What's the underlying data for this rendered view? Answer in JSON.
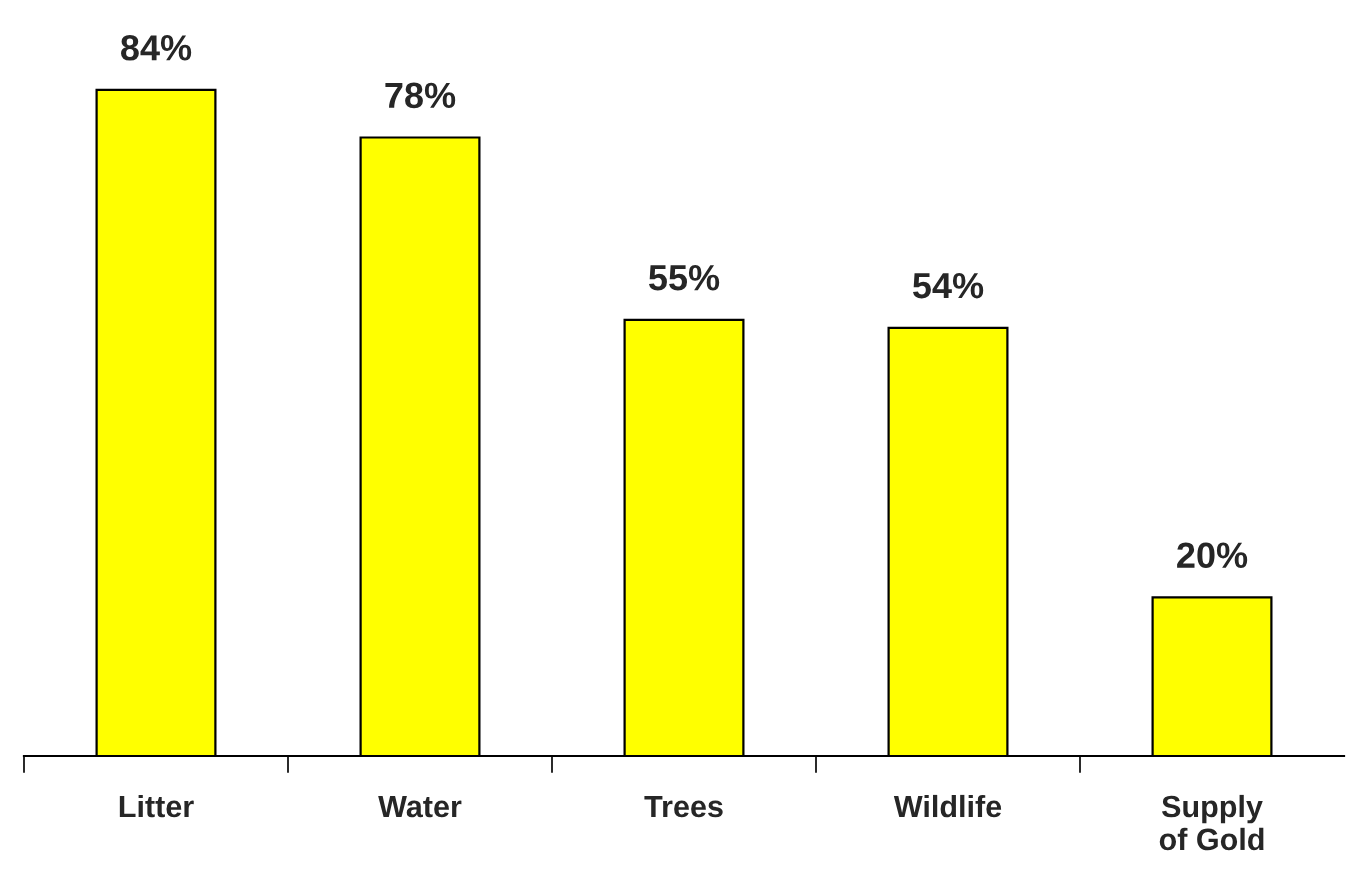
{
  "chart_data": {
    "type": "bar",
    "categories": [
      "Litter",
      "Water",
      "Trees",
      "Wildlife",
      "Supply\nof Gold"
    ],
    "values": [
      84,
      78,
      55,
      54,
      20
    ],
    "value_labels": [
      "84%",
      "78%",
      "55%",
      "54%",
      "20%"
    ],
    "color": "#ffff00",
    "grid": false,
    "legend": false
  }
}
